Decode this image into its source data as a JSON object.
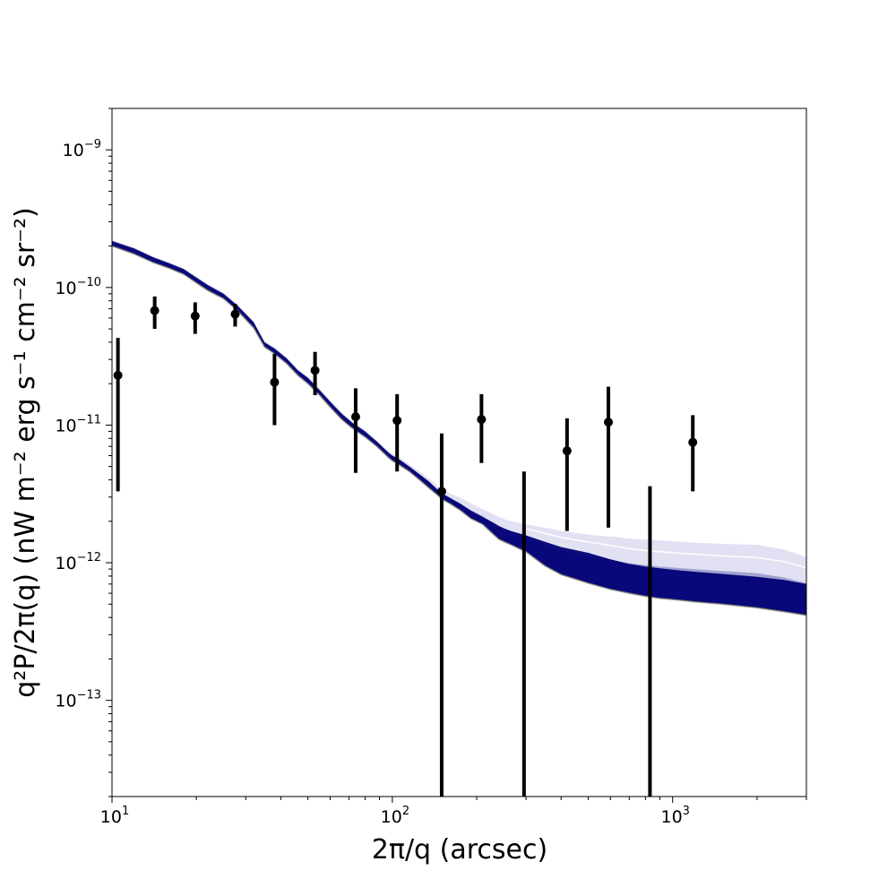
{
  "chart_data": {
    "type": "line",
    "title": "",
    "xlabel": "2π/q (arcsec)",
    "ylabel": "q²P/2π(q) (nW m⁻² erg s⁻¹ cm⁻² sr⁻²)",
    "xscale": "log",
    "yscale": "log",
    "xlim": [
      10,
      3000
    ],
    "ylim": [
      2e-14,
      2e-09
    ],
    "grid": false,
    "x_tick_labels": [
      {
        "base": "10",
        "exp": "1",
        "value": 10
      },
      {
        "base": "10",
        "exp": "2",
        "value": 100
      },
      {
        "base": "10",
        "exp": "3",
        "value": 1000
      }
    ],
    "y_tick_labels": [
      {
        "base": "10",
        "exp": "−9",
        "value": 1e-09
      },
      {
        "base": "10",
        "exp": "−10",
        "value": 1e-10
      },
      {
        "base": "10",
        "exp": "−11",
        "value": 1e-11
      },
      {
        "base": "10",
        "exp": "−12",
        "value": 1e-12
      },
      {
        "base": "10",
        "exp": "−13",
        "value": 1e-13
      }
    ],
    "series": [
      {
        "type": "model-band",
        "color": "#000075",
        "x": [
          10,
          12,
          14,
          16,
          18,
          20,
          22,
          25,
          28,
          32,
          35,
          38,
          42,
          46,
          50,
          55,
          60,
          66,
          72,
          80,
          88,
          97,
          100,
          105,
          115,
          125,
          135,
          145,
          150,
          160,
          175,
          190,
          210,
          230,
          240,
          250,
          265,
          300,
          350,
          400,
          500,
          600,
          700,
          800,
          900,
          1000,
          1200,
          1500,
          2000,
          2500,
          3000
        ],
        "y_lower": [
          2e-10,
          1.75e-10,
          1.52e-10,
          1.38e-10,
          1.25e-10,
          1.08e-10,
          9.5e-11,
          8.3e-11,
          6.8e-11,
          5.1e-11,
          3.7e-11,
          3.3e-11,
          2.8e-11,
          2.3e-11,
          2e-11,
          1.65e-11,
          1.35e-11,
          1.1e-11,
          9.5e-12,
          8.2e-12,
          7e-12,
          5.8e-12,
          5.5e-12,
          5.2e-12,
          4.6e-12,
          4e-12,
          3.5e-12,
          3.1e-12,
          2.9e-12,
          2.7e-12,
          2.4e-12,
          2.1e-12,
          1.9e-12,
          1.6e-12,
          1.48e-12,
          1.42e-12,
          1.35e-12,
          1.2e-12,
          9.5e-13,
          8.2e-13,
          7.1e-13,
          6.4e-13,
          6e-13,
          5.7e-13,
          5.5e-13,
          5.4e-13,
          5.2e-13,
          5e-13,
          4.7e-13,
          4.4e-13,
          4.15e-13
        ],
        "y_upper": [
          2.18e-10,
          1.92e-10,
          1.66e-10,
          1.5e-10,
          1.36e-10,
          1.18e-10,
          1.04e-10,
          9e-11,
          7.4e-11,
          5.6e-11,
          4e-11,
          3.6e-11,
          3.05e-11,
          2.5e-11,
          2.2e-11,
          1.8e-11,
          1.48e-11,
          1.21e-11,
          1.04e-11,
          9e-12,
          7.6e-12,
          6.3e-12,
          6e-12,
          5.7e-12,
          5e-12,
          4.4e-12,
          3.9e-12,
          3.4e-12,
          3.2e-12,
          2.98e-12,
          2.68e-12,
          2.4e-12,
          2.15e-12,
          1.95e-12,
          1.85e-12,
          1.78e-12,
          1.7e-12,
          1.58e-12,
          1.42e-12,
          1.3e-12,
          1.18e-12,
          1.06e-12,
          9.8e-13,
          9.4e-13,
          9.1e-13,
          8.9e-13,
          8.6e-13,
          8.3e-13,
          7.9e-13,
          7.5e-13,
          7e-13
        ],
        "faint_upper": [
          2.2e-10,
          1.95e-10,
          1.68e-10,
          1.52e-10,
          1.38e-10,
          1.2e-10,
          1.06e-10,
          9.2e-11,
          7.6e-11,
          5.7e-11,
          4.1e-11,
          3.7e-11,
          3.1e-11,
          2.55e-11,
          2.25e-11,
          1.85e-11,
          1.52e-11,
          1.24e-11,
          1.06e-11,
          9.2e-12,
          7.8e-12,
          6.5e-12,
          6.2e-12,
          5.9e-12,
          5.2e-12,
          4.6e-12,
          4.1e-12,
          3.6e-12,
          3.4e-12,
          3.2e-12,
          2.95e-12,
          2.7e-12,
          2.45e-12,
          2.25e-12,
          2.15e-12,
          2.08e-12,
          2e-12,
          1.9e-12,
          1.8e-12,
          1.7e-12,
          1.6e-12,
          1.55e-12,
          1.5e-12,
          1.47e-12,
          1.45e-12,
          1.43e-12,
          1.4e-12,
          1.37e-12,
          1.35e-12,
          1.25e-12,
          1.1e-12
        ]
      },
      {
        "type": "errorbar",
        "color": "#000000",
        "x": [
          10.5,
          14.2,
          19.8,
          27.5,
          38.0,
          53.0,
          74.0,
          104.0,
          150.0,
          208.0,
          295.0,
          420.0,
          590.0,
          830.0,
          1180.0
        ],
        "y": [
          2.3e-11,
          6.8e-11,
          6.2e-11,
          6.4e-11,
          2.05e-11,
          2.5e-11,
          1.15e-11,
          1.08e-11,
          3.3e-12,
          1.1e-11,
          null,
          6.5e-12,
          1.05e-11,
          null,
          7.5e-12
        ],
        "y_err_low": [
          3.3e-12,
          5e-11,
          4.6e-11,
          5.2e-11,
          1e-11,
          1.65e-11,
          4.5e-12,
          4.6e-12,
          2e-14,
          5.3e-12,
          2e-14,
          1.7e-12,
          1.8e-12,
          2e-14,
          3.3e-12
        ],
        "y_err_high": [
          4.3e-11,
          8.6e-11,
          7.8e-11,
          7.6e-11,
          3.3e-11,
          3.4e-11,
          1.85e-11,
          1.68e-11,
          8.7e-12,
          1.68e-11,
          4.6e-12,
          1.12e-11,
          1.9e-11,
          3.6e-12,
          1.18e-11
        ]
      }
    ]
  }
}
